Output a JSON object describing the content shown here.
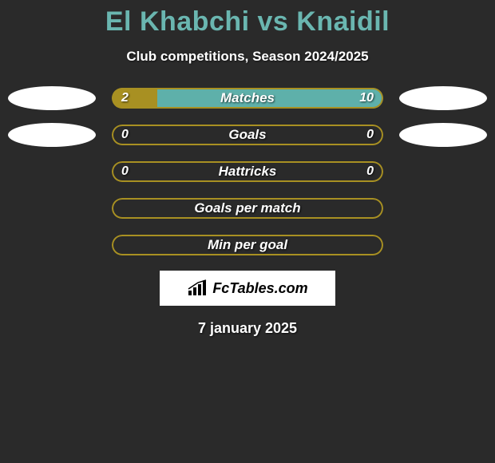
{
  "title": "El Khabchi vs Knaidil",
  "subtitle": "Club competitions, Season 2024/2025",
  "colors": {
    "background": "#2a2a2a",
    "title": "#6ab6b0",
    "text": "#ffffff",
    "left_player": "#a89022",
    "right_player": "#5eb0aa",
    "bar_inactive": "#a89022"
  },
  "rows": [
    {
      "label": "Matches",
      "left_value": "2",
      "right_value": "10",
      "left_pct": 16.7,
      "right_pct": 83.3,
      "has_avatars": true,
      "left_fill_color": "#a89022",
      "right_fill_color": "#5eb0aa",
      "border_color": "#a89022"
    },
    {
      "label": "Goals",
      "left_value": "0",
      "right_value": "0",
      "left_pct": 0,
      "right_pct": 0,
      "has_avatars": true,
      "left_fill_color": "#a89022",
      "right_fill_color": "#5eb0aa",
      "border_color": "#a89022"
    },
    {
      "label": "Hattricks",
      "left_value": "0",
      "right_value": "0",
      "left_pct": 0,
      "right_pct": 0,
      "has_avatars": false,
      "left_fill_color": "#a89022",
      "right_fill_color": "#5eb0aa",
      "border_color": "#a89022"
    },
    {
      "label": "Goals per match",
      "left_value": "",
      "right_value": "",
      "left_pct": 0,
      "right_pct": 0,
      "has_avatars": false,
      "left_fill_color": "#a89022",
      "right_fill_color": "#5eb0aa",
      "border_color": "#a89022"
    },
    {
      "label": "Min per goal",
      "left_value": "",
      "right_value": "",
      "left_pct": 0,
      "right_pct": 0,
      "has_avatars": false,
      "left_fill_color": "#a89022",
      "right_fill_color": "#5eb0aa",
      "border_color": "#a89022"
    }
  ],
  "logo_text": "FcTables.com",
  "date": "7 january 2025"
}
